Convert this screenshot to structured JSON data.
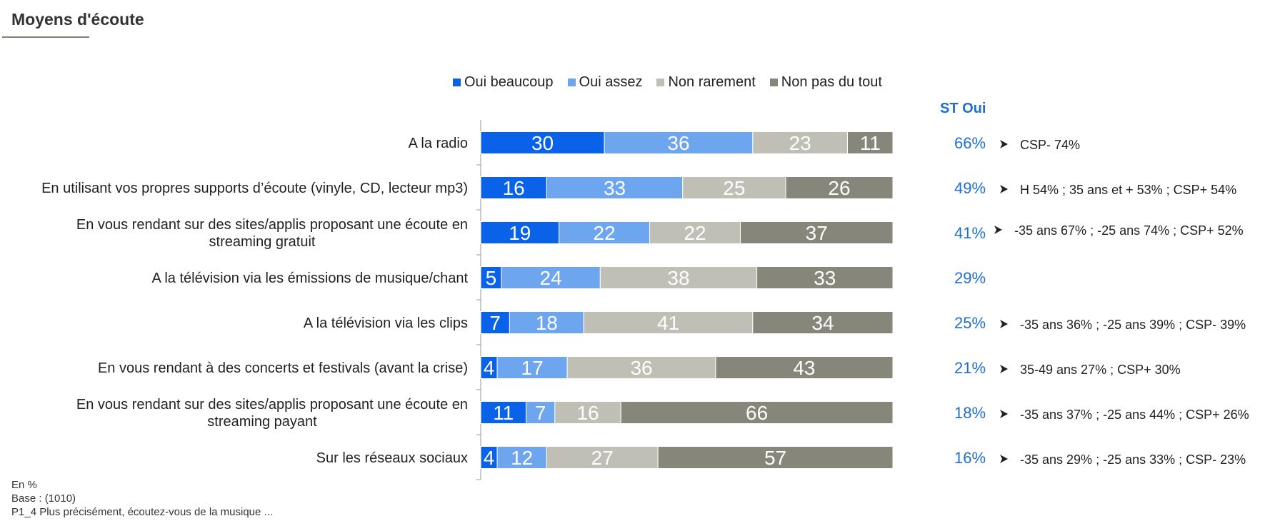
{
  "header": {
    "title": "Moyens d'écoute"
  },
  "legend": [
    {
      "label": "Oui beaucoup",
      "color": "#0a62e8"
    },
    {
      "label": "Oui assez",
      "color": "#6ea5ef"
    },
    {
      "label": "Non rarement",
      "color": "#c0bfb5"
    },
    {
      "label": "Non pas du tout",
      "color": "#86877a"
    }
  ],
  "st_header": "ST Oui",
  "chart_data": {
    "type": "bar",
    "orientation": "horizontal",
    "stacked": true,
    "xlim": [
      0,
      100
    ],
    "categories": [
      [
        "A la radio"
      ],
      [
        "En utilisant vos propres supports d’écoute (vinyle, CD, lecteur mp3)"
      ],
      [
        "En vous rendant sur des sites/applis proposant une écoute en",
        "streaming gratuit"
      ],
      [
        "A la télévision via les émissions de musique/chant"
      ],
      [
        "A la télévision via les clips"
      ],
      [
        "En vous rendant à des concerts et festivals (avant la crise)"
      ],
      [
        "En vous rendant sur des sites/applis proposant une écoute en",
        "streaming payant"
      ],
      [
        "Sur les réseaux sociaux"
      ]
    ],
    "series": [
      {
        "name": "Oui beaucoup",
        "values": [
          30,
          16,
          19,
          5,
          7,
          4,
          11,
          4
        ]
      },
      {
        "name": "Oui assez",
        "values": [
          36,
          33,
          22,
          24,
          18,
          17,
          7,
          12
        ]
      },
      {
        "name": "Non rarement",
        "values": [
          23,
          25,
          22,
          38,
          41,
          36,
          16,
          27
        ]
      },
      {
        "name": "Non pas du tout",
        "values": [
          11,
          26,
          37,
          33,
          34,
          43,
          66,
          57
        ]
      }
    ],
    "st_oui": [
      "66%",
      "49%",
      "41%",
      "29%",
      "25%",
      "21%",
      "18%",
      "16%"
    ],
    "notes": [
      "CSP- 74%",
      "H 54% ;  35 ans et + 53% ; CSP+ 54%",
      "-35 ans 67% ; -25 ans 74% ; CSP+ 52%",
      "",
      "-35 ans 36% ; -25 ans 39% ; CSP- 39%",
      "35-49 ans 27% ; CSP+ 30%",
      "-35 ans 37% ; -25 ans 44% ; CSP+ 26%",
      "-35 ans 29% ; -25 ans 33% ; CSP- 23%"
    ]
  },
  "footer": {
    "unit": "En %",
    "base": "Base : (1010)",
    "question": "P1_4 Plus précisément, écoutez-vous de la musique ..."
  }
}
